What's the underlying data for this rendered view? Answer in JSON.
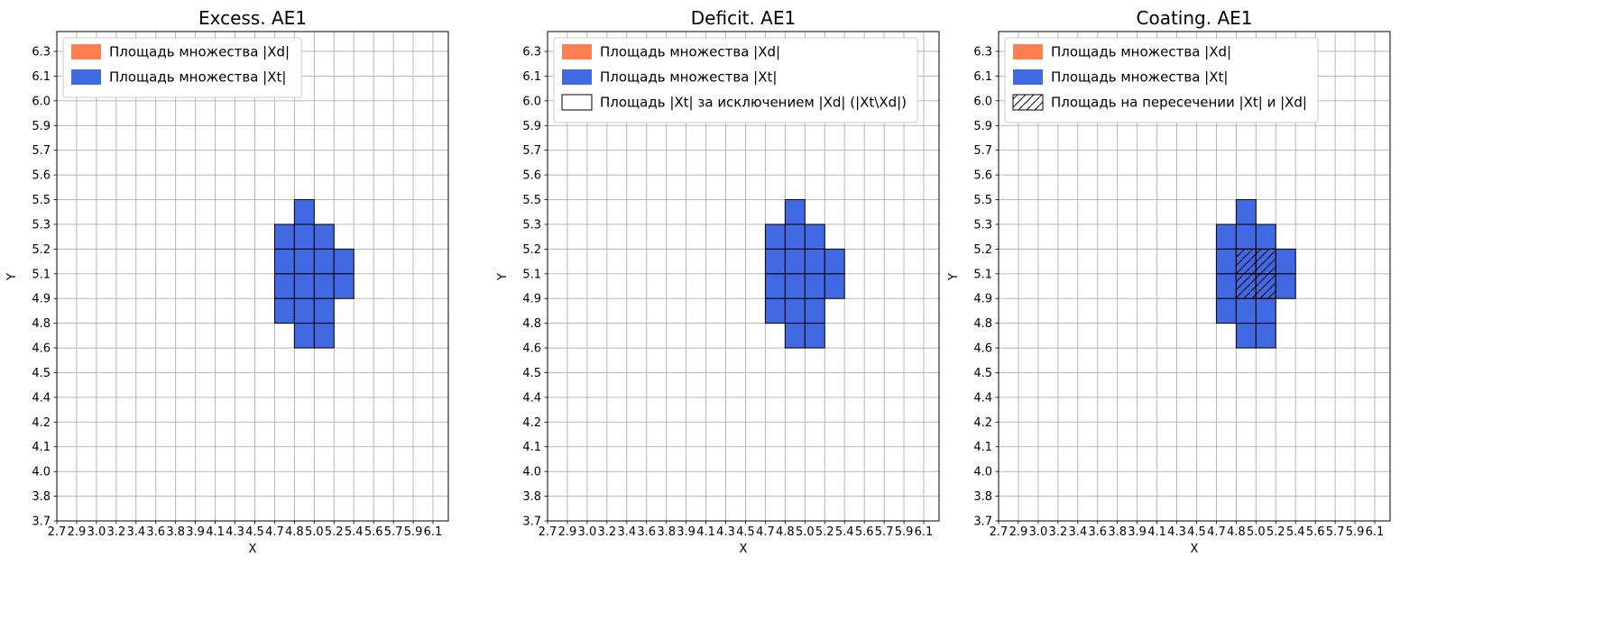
{
  "figure": {
    "background": "#ffffff"
  },
  "style": {
    "accent_orange": "#ff7f50",
    "accent_blue": "#4169e1",
    "grid_color": "#b0b0b0",
    "axes_border_color": "#000000",
    "cell_edge_color": "#000000",
    "legend_border_color": "#cccccc",
    "hatch_color": "#000000"
  },
  "chart_data": [
    {
      "type": "heatmap",
      "title": "Excess. AE1",
      "xlabel": "X",
      "ylabel": "Y",
      "grid": true,
      "legend_position": "upper-left",
      "x_tick_labels": [
        "2.7",
        "2.9",
        "3.0",
        "3.2",
        "3.4",
        "3.6",
        "3.8",
        "3.9",
        "4.1",
        "4.3",
        "4.5",
        "4.7",
        "4.8",
        "5.0",
        "5.2",
        "5.4",
        "5.6",
        "5.7",
        "5.9",
        "6.1"
      ],
      "y_tick_labels": [
        "3.7",
        "3.8",
        "4.0",
        "4.1",
        "4.2",
        "4.4",
        "4.5",
        "4.6",
        "4.8",
        "4.9",
        "5.1",
        "5.2",
        "5.3",
        "5.5",
        "5.6",
        "5.7",
        "5.9",
        "6.0",
        "6.1",
        "6.3"
      ],
      "legend": [
        {
          "label": "Площадь множества |Xd|",
          "swatch": "solid",
          "color": "#ff7f50"
        },
        {
          "label": "Площадь множества  |Xt|",
          "swatch": "solid",
          "color": "#4169e1"
        }
      ],
      "cells": {
        "fill_color": "#4169e1",
        "blob_x_range": [
          4.7,
          5.4
        ],
        "blob_y_range": [
          4.6,
          5.5
        ],
        "filled": [
          [
            12,
            12
          ],
          [
            11,
            11
          ],
          [
            12,
            11
          ],
          [
            13,
            11
          ],
          [
            11,
            10
          ],
          [
            12,
            10
          ],
          [
            13,
            10
          ],
          [
            14,
            10
          ],
          [
            11,
            9
          ],
          [
            12,
            9
          ],
          [
            13,
            9
          ],
          [
            14,
            9
          ],
          [
            11,
            8
          ],
          [
            12,
            8
          ],
          [
            13,
            8
          ],
          [
            12,
            7
          ],
          [
            13,
            7
          ]
        ],
        "hatched": []
      }
    },
    {
      "type": "heatmap",
      "title": "Deficit. AE1",
      "xlabel": "X",
      "ylabel": "Y",
      "grid": true,
      "legend_position": "upper-left",
      "x_tick_labels": [
        "2.7",
        "2.9",
        "3.0",
        "3.2",
        "3.4",
        "3.6",
        "3.8",
        "3.9",
        "4.1",
        "4.3",
        "4.5",
        "4.7",
        "4.8",
        "5.0",
        "5.2",
        "5.4",
        "5.6",
        "5.7",
        "5.9",
        "6.1"
      ],
      "y_tick_labels": [
        "3.7",
        "3.8",
        "4.0",
        "4.1",
        "4.2",
        "4.4",
        "4.5",
        "4.6",
        "4.8",
        "4.9",
        "5.1",
        "5.2",
        "5.3",
        "5.5",
        "5.6",
        "5.7",
        "5.9",
        "6.0",
        "6.1",
        "6.3"
      ],
      "legend": [
        {
          "label": "Площадь множества |Xd|",
          "swatch": "solid",
          "color": "#ff7f50"
        },
        {
          "label": "Площадь множества  |Xt|",
          "swatch": "solid",
          "color": "#4169e1"
        },
        {
          "label": "Площадь |Xt| за исключением |Xd| (|Xt\\Xd|)",
          "swatch": "outline",
          "color": "#ffffff"
        }
      ],
      "cells": {
        "fill_color": "#4169e1",
        "blob_x_range": [
          4.7,
          5.4
        ],
        "blob_y_range": [
          4.6,
          5.5
        ],
        "filled": [
          [
            12,
            12
          ],
          [
            11,
            11
          ],
          [
            12,
            11
          ],
          [
            13,
            11
          ],
          [
            11,
            10
          ],
          [
            12,
            10
          ],
          [
            13,
            10
          ],
          [
            14,
            10
          ],
          [
            11,
            9
          ],
          [
            12,
            9
          ],
          [
            13,
            9
          ],
          [
            14,
            9
          ],
          [
            11,
            8
          ],
          [
            12,
            8
          ],
          [
            13,
            8
          ],
          [
            12,
            7
          ],
          [
            13,
            7
          ]
        ],
        "hatched": []
      }
    },
    {
      "type": "heatmap",
      "title": "Coating. AE1",
      "xlabel": "X",
      "ylabel": "Y",
      "grid": true,
      "legend_position": "upper-left",
      "x_tick_labels": [
        "2.7",
        "2.9",
        "3.0",
        "3.2",
        "3.4",
        "3.6",
        "3.8",
        "3.9",
        "4.1",
        "4.3",
        "4.5",
        "4.7",
        "4.8",
        "5.0",
        "5.2",
        "5.4",
        "5.6",
        "5.7",
        "5.9",
        "6.1"
      ],
      "y_tick_labels": [
        "3.7",
        "3.8",
        "4.0",
        "4.1",
        "4.2",
        "4.4",
        "4.5",
        "4.6",
        "4.8",
        "4.9",
        "5.1",
        "5.2",
        "5.3",
        "5.5",
        "5.6",
        "5.7",
        "5.9",
        "6.0",
        "6.1",
        "6.3"
      ],
      "legend": [
        {
          "label": "Площадь множества |Xd|",
          "swatch": "solid",
          "color": "#ff7f50"
        },
        {
          "label": "Площадь множества  |Xt|",
          "swatch": "solid",
          "color": "#4169e1"
        },
        {
          "label": "Площадь на пересечении |Xt| и |Xd|",
          "swatch": "hatched",
          "color": "#ffffff"
        }
      ],
      "cells": {
        "fill_color": "#4169e1",
        "blob_x_range": [
          4.7,
          5.4
        ],
        "blob_y_range": [
          4.6,
          5.5
        ],
        "intersection_x_range": [
          4.8,
          5.2
        ],
        "intersection_y_range": [
          4.9,
          5.2
        ],
        "filled": [
          [
            12,
            12
          ],
          [
            11,
            11
          ],
          [
            12,
            11
          ],
          [
            13,
            11
          ],
          [
            11,
            10
          ],
          [
            12,
            10
          ],
          [
            13,
            10
          ],
          [
            14,
            10
          ],
          [
            11,
            9
          ],
          [
            12,
            9
          ],
          [
            13,
            9
          ],
          [
            14,
            9
          ],
          [
            11,
            8
          ],
          [
            12,
            8
          ],
          [
            13,
            8
          ],
          [
            12,
            7
          ],
          [
            13,
            7
          ]
        ],
        "hatched": [
          [
            12,
            10
          ],
          [
            13,
            10
          ],
          [
            12,
            9
          ],
          [
            13,
            9
          ]
        ]
      }
    }
  ]
}
